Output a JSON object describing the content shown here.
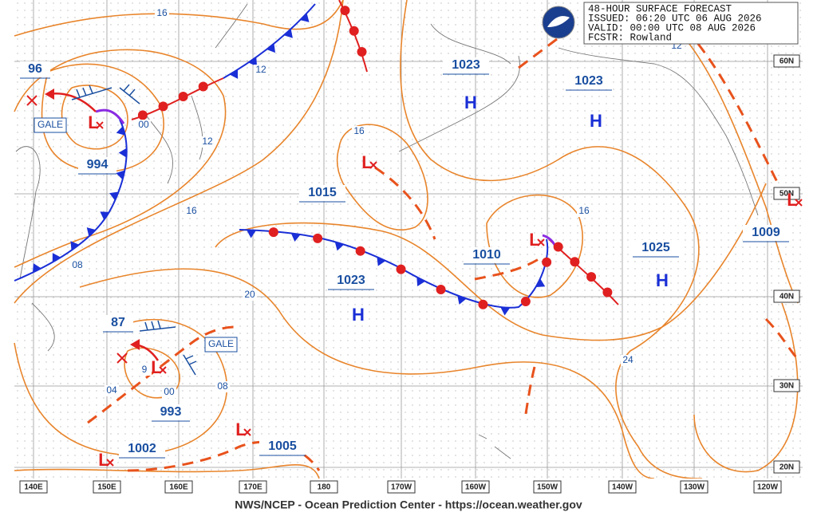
{
  "header": {
    "lines": [
      "48-HOUR SURFACE FORECAST",
      "ISSUED: 06:20 UTC 06 AUG 2026",
      "VALID:  00:00 UTC 08 AUG 2026",
      "FCSTR:  Rowland"
    ]
  },
  "pressure_labels": [
    "1023",
    "1023",
    "1015",
    "1010",
    "1025",
    "1009",
    "1023",
    "994",
    "96",
    "87",
    "993",
    "1002",
    "1005"
  ],
  "highs": [
    "H",
    "H",
    "H",
    "H"
  ],
  "lows": [
    "L",
    "L",
    "L",
    "L",
    "L",
    "L",
    "L"
  ],
  "gale_labels": [
    "GALE",
    "GALE"
  ],
  "isobar_labels": [
    "16",
    "12",
    "12",
    "16",
    "16",
    "16",
    "20",
    "24",
    "08",
    "04",
    "00",
    "08",
    "00",
    "9",
    "12"
  ],
  "longitudes": [
    "140E",
    "150E",
    "160E",
    "170E",
    "180",
    "170W",
    "160W",
    "150W",
    "140W",
    "130W",
    "120W"
  ],
  "latitudes": [
    "60N",
    "50N",
    "40N",
    "30N",
    "20N"
  ],
  "footer": "NWS/NCEP - Ocean Prediction Center - https://ocean.weather.gov"
}
